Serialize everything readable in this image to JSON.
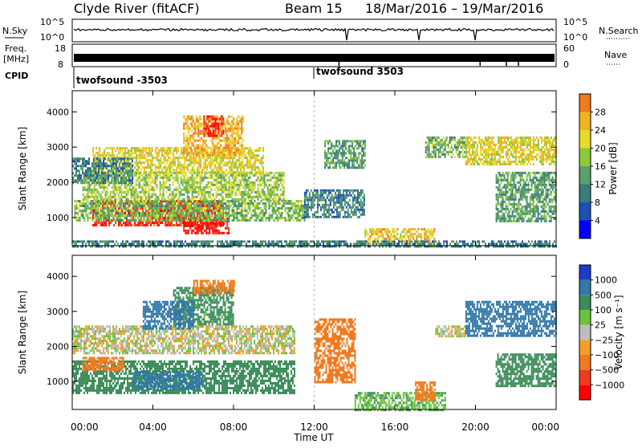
{
  "header": {
    "site": "Clyde River (fitACF)",
    "beam": "Beam 15",
    "date_range": "18/Mar/2016 – 19/Mar/2016"
  },
  "top_panel": {
    "nsky_label": "N.Sky",
    "nsky_ticks": [
      "10^5",
      "10^0"
    ],
    "nsearch_label": "N.Search",
    "nsearch_ticks": [
      "10^5",
      "10^0"
    ],
    "freq_label": "Freq.",
    "freq_unit": "[MHz]",
    "freq_ticks": [
      "18",
      "8"
    ],
    "nave_label": "Nave",
    "nave_ticks": [
      "60",
      "0"
    ],
    "cpid_label": "CPID",
    "cpid_segments": [
      {
        "name": "twofsound -3503",
        "start_hour": 0
      },
      {
        "name": "twofsound 3503",
        "start_hour": 12.0
      }
    ]
  },
  "power_panel": {
    "ylabel": "Slant Range [km]",
    "colorbar_label": "Power [dB]",
    "colorbar_ticks": [
      "28",
      "24",
      "20",
      "16",
      "12",
      "8",
      "4"
    ]
  },
  "velocity_panel": {
    "ylabel": "Slant Range [km]",
    "colorbar_label": "Velocity [m s⁻¹]",
    "colorbar_ticks": [
      "1000",
      "500",
      "100",
      "25",
      "−25",
      "−100",
      "−500",
      "−1000"
    ]
  },
  "chart_data": [
    {
      "type": "heatmap",
      "title": "Clyde River (fitACF) Beam 15 18/Mar/2016 – 19/Mar/2016",
      "xlabel": "Time UT",
      "ylabel": "Slant Range [km]",
      "x_ticks": [
        "00:00",
        "04:00",
        "08:00",
        "12:00",
        "16:00",
        "20:00",
        "00:00"
      ],
      "xlim_hours": [
        0,
        24
      ],
      "y_ticks": [
        1000,
        2000,
        3000,
        4000
      ],
      "ylim": [
        200,
        4600
      ],
      "colorbar": "Power [dB]",
      "color_ticks": [
        4,
        8,
        12,
        16,
        20,
        24,
        28
      ],
      "color_range": [
        0,
        30
      ],
      "regions": [
        {
          "t": [
            1.0,
            7.5
          ],
          "r": [
            800,
            1500
          ],
          "v": 27
        },
        {
          "t": [
            5.5,
            7.8
          ],
          "r": [
            550,
            1000
          ],
          "v": 28
        },
        {
          "t": [
            0.1,
            11.5
          ],
          "r": [
            900,
            1500
          ],
          "v": 12
        },
        {
          "t": [
            0.5,
            10.5
          ],
          "r": [
            1500,
            2300
          ],
          "v": 14
        },
        {
          "t": [
            1.0,
            9.5
          ],
          "r": [
            2300,
            3000
          ],
          "v": 17
        },
        {
          "t": [
            5.5,
            8.5
          ],
          "r": [
            2800,
            3900
          ],
          "v": 20
        },
        {
          "t": [
            6.5,
            7.5
          ],
          "r": [
            3300,
            3900
          ],
          "v": 27
        },
        {
          "t": [
            0.0,
            3.0
          ],
          "r": [
            2000,
            2700
          ],
          "v": 8
        },
        {
          "t": [
            11.5,
            14.5
          ],
          "r": [
            1000,
            1800
          ],
          "v": 8
        },
        {
          "t": [
            14.5,
            18.0
          ],
          "r": [
            250,
            700
          ],
          "v": 18
        },
        {
          "t": [
            12.5,
            14.5
          ],
          "r": [
            2400,
            3200
          ],
          "v": 10
        },
        {
          "t": [
            17.5,
            19.5
          ],
          "r": [
            2700,
            3300
          ],
          "v": 12
        },
        {
          "t": [
            19.5,
            24.0
          ],
          "r": [
            2500,
            3300
          ],
          "v": 17
        },
        {
          "t": [
            21.0,
            24.0
          ],
          "r": [
            900,
            2300
          ],
          "v": 10
        },
        {
          "t": [
            0.0,
            24.0
          ],
          "r": [
            200,
            350
          ],
          "v": 8
        }
      ]
    },
    {
      "type": "heatmap",
      "xlabel": "Time UT",
      "ylabel": "Slant Range [km]",
      "x_ticks": [
        "00:00",
        "04:00",
        "08:00",
        "12:00",
        "16:00",
        "20:00",
        "00:00"
      ],
      "xlim_hours": [
        0,
        24
      ],
      "y_ticks": [
        1000,
        2000,
        3000,
        4000
      ],
      "ylim": [
        200,
        4600
      ],
      "colorbar": "Velocity [m s⁻¹]",
      "color_ticks": [
        1000,
        500,
        100,
        25,
        -25,
        -100,
        -500,
        -1000
      ],
      "regions": [
        {
          "t": [
            0.0,
            11.0
          ],
          "r": [
            700,
            1600
          ],
          "v": 200
        },
        {
          "t": [
            3.0,
            6.5
          ],
          "r": [
            800,
            1300
          ],
          "v": 800
        },
        {
          "t": [
            0.0,
            11.0
          ],
          "r": [
            1800,
            2600
          ],
          "v": 0
        },
        {
          "t": [
            5.0,
            8.0
          ],
          "r": [
            2600,
            3700
          ],
          "v": 150
        },
        {
          "t": [
            6.0,
            8.0
          ],
          "r": [
            3500,
            3900
          ],
          "v": -200
        },
        {
          "t": [
            0.5,
            2.5
          ],
          "r": [
            1300,
            1700
          ],
          "v": -300
        },
        {
          "t": [
            3.5,
            6.0
          ],
          "r": [
            2500,
            3300
          ],
          "v": 600
        },
        {
          "t": [
            12.0,
            14.0
          ],
          "r": [
            1000,
            2800
          ],
          "v": -300
        },
        {
          "t": [
            14.0,
            18.5
          ],
          "r": [
            200,
            700
          ],
          "v": 80
        },
        {
          "t": [
            17.0,
            18.0
          ],
          "r": [
            500,
            1000
          ],
          "v": -200
        },
        {
          "t": [
            18.0,
            19.5
          ],
          "r": [
            2300,
            2600
          ],
          "v": 0
        },
        {
          "t": [
            19.5,
            24.0
          ],
          "r": [
            2300,
            3300
          ],
          "v": 700
        },
        {
          "t": [
            21.0,
            24.0
          ],
          "r": [
            900,
            1800
          ],
          "v": 300
        }
      ]
    }
  ]
}
